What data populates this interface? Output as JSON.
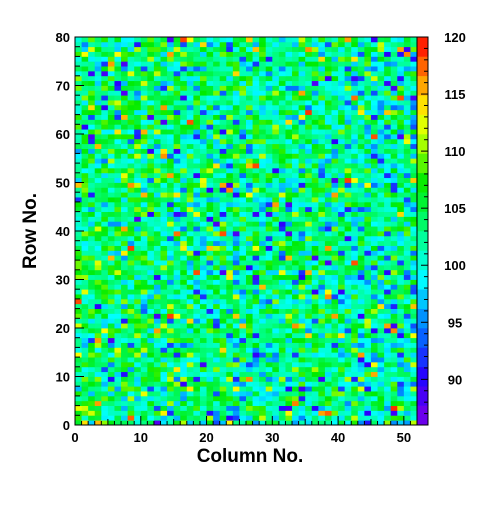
{
  "chart_data": {
    "type": "heatmap",
    "title": "",
    "xlabel": "Column No.",
    "ylabel": "Row No.",
    "xlim": [
      0,
      52
    ],
    "ylim": [
      0,
      80
    ],
    "x_ticks": [
      0,
      10,
      20,
      30,
      40,
      50
    ],
    "y_ticks": [
      0,
      10,
      20,
      30,
      40,
      50,
      60,
      70,
      80
    ],
    "x_bins": 52,
    "y_bins": 80,
    "value_range": [
      86,
      120
    ],
    "colorbar_ticks": [
      90,
      95,
      100,
      105,
      110,
      115,
      120
    ],
    "colorscale": "rainbow (violet-blue-cyan-green-yellow-orange-red)",
    "typical_value": 104,
    "note_distribution": "values mostly 98-110; scattered blue (88-95) and orange/red (113-120) cells"
  }
}
